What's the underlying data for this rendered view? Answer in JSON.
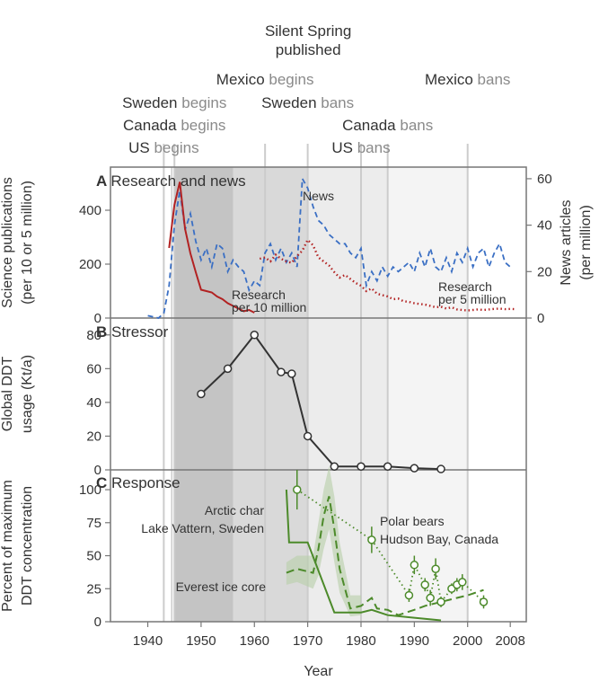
{
  "xaxis": {
    "label": "Year",
    "range": [
      1933,
      2011
    ],
    "ticks": [
      "1940",
      "1950",
      "1960",
      "1970",
      "1980",
      "1990",
      "2000",
      "2008"
    ]
  },
  "events": [
    {
      "year": 1943,
      "actor": "US",
      "verb": "begins"
    },
    {
      "year": 1945,
      "actor": "Canada",
      "verb": "begins"
    },
    {
      "year": 1945,
      "actor": "Sweden",
      "verb": "begins"
    },
    {
      "year": 1962,
      "actor": "Mexico",
      "verb": "begins"
    },
    {
      "year": 1962,
      "actor": "",
      "verb": "Silent Spring\npublished"
    },
    {
      "year": 1970,
      "actor": "Sweden",
      "verb": "bans"
    },
    {
      "year": 1980,
      "actor": "US",
      "verb": "bans"
    },
    {
      "year": 1985,
      "actor": "Canada",
      "verb": "bans"
    },
    {
      "year": 2000,
      "actor": "Mexico",
      "verb": "bans"
    }
  ],
  "panels": {
    "a": {
      "letter": "A",
      "title": "Research and news",
      "ylabel_left": [
        "Science publications",
        "(per 10 or 5 million)"
      ],
      "ylabel_right": [
        "News articles",
        "(per million)"
      ],
      "yticks_left": [
        "0",
        "200",
        "400"
      ],
      "yticks_right": [
        "0",
        "20",
        "40",
        "60"
      ]
    },
    "b": {
      "letter": "B",
      "title": "Stressor",
      "ylabel": [
        "Global DDT",
        "usage (Kt/a)"
      ],
      "yticks": [
        "0",
        "20",
        "40",
        "60",
        "80"
      ]
    },
    "c": {
      "letter": "C",
      "title": "Response",
      "ylabel": [
        "Percent of maximum",
        "DDT concentration"
      ],
      "yticks": [
        "0",
        "25",
        "50",
        "75",
        "100"
      ]
    }
  },
  "annotations": {
    "news": "News",
    "research10": [
      "Research",
      "per 10 million"
    ],
    "research5": [
      "Research",
      "per 5 million"
    ],
    "arctic": [
      "Arctic char",
      "Lake Vattern, Sweden"
    ],
    "everest": "Everest ice core",
    "polar": [
      "Polar bears",
      "Hudson Bay, Canada"
    ]
  },
  "colors": {
    "research": "#b22222",
    "news": "#3a6fc4",
    "ddt_usage": "#333333",
    "response": "#4c8a2a",
    "ci_fill": "#b8cfa8",
    "shade_dark": "#c4c4c4",
    "shade_mid": "#d9d9d9",
    "shade_light": "#ececec",
    "shade_lighter": "#f4f4f4",
    "event_line": "#cccccc",
    "frame": "#777777"
  },
  "chart_data": [
    {
      "type": "line",
      "panel": "A",
      "title": "Research and news",
      "x_range": [
        1933,
        2011
      ],
      "ylim_left": [
        0,
        560
      ],
      "ylim_right": [
        0,
        65
      ],
      "series": [
        {
          "name": "News",
          "axis": "right",
          "style": "dashed",
          "points": [
            [
              1940,
              1
            ],
            [
              1942,
              0
            ],
            [
              1943,
              2
            ],
            [
              1944,
              14
            ],
            [
              1945,
              40
            ],
            [
              1946,
              55
            ],
            [
              1947,
              38
            ],
            [
              1948,
              45
            ],
            [
              1949,
              33
            ],
            [
              1950,
              25
            ],
            [
              1951,
              30
            ],
            [
              1952,
              22
            ],
            [
              1953,
              32
            ],
            [
              1954,
              30
            ],
            [
              1955,
              20
            ],
            [
              1956,
              25
            ],
            [
              1957,
              22
            ],
            [
              1958,
              20
            ],
            [
              1959,
              12
            ],
            [
              1960,
              16
            ],
            [
              1961,
              14
            ],
            [
              1962,
              28
            ],
            [
              1963,
              32
            ],
            [
              1964,
              25
            ],
            [
              1965,
              30
            ],
            [
              1966,
              24
            ],
            [
              1967,
              28
            ],
            [
              1968,
              22
            ],
            [
              1969,
              60
            ],
            [
              1970,
              56
            ],
            [
              1971,
              48
            ],
            [
              1972,
              42
            ],
            [
              1973,
              40
            ],
            [
              1974,
              36
            ],
            [
              1975,
              34
            ],
            [
              1976,
              32
            ],
            [
              1977,
              32
            ],
            [
              1978,
              28
            ],
            [
              1979,
              26
            ],
            [
              1980,
              30
            ],
            [
              1981,
              14
            ],
            [
              1982,
              20
            ],
            [
              1983,
              16
            ],
            [
              1984,
              22
            ],
            [
              1985,
              18
            ],
            [
              1986,
              22
            ],
            [
              1987,
              20
            ],
            [
              1988,
              22
            ],
            [
              1989,
              24
            ],
            [
              1990,
              20
            ],
            [
              1991,
              28
            ],
            [
              1992,
              22
            ],
            [
              1993,
              30
            ],
            [
              1994,
              22
            ],
            [
              1995,
              20
            ],
            [
              1996,
              26
            ],
            [
              1997,
              20
            ],
            [
              1998,
              28
            ],
            [
              1999,
              24
            ],
            [
              2000,
              30
            ],
            [
              2001,
              22
            ],
            [
              2002,
              28
            ],
            [
              2003,
              30
            ],
            [
              2004,
              22
            ],
            [
              2005,
              28
            ],
            [
              2006,
              32
            ],
            [
              2007,
              24
            ],
            [
              2008,
              22
            ]
          ]
        },
        {
          "name": "Research per 10 million",
          "axis": "left",
          "style": "solid",
          "points": [
            [
              1944,
              260
            ],
            [
              1945,
              420
            ],
            [
              1946,
              505
            ],
            [
              1947,
              330
            ],
            [
              1948,
              240
            ],
            [
              1949,
              170
            ],
            [
              1950,
              105
            ],
            [
              1951,
              100
            ],
            [
              1952,
              95
            ],
            [
              1953,
              80
            ],
            [
              1954,
              70
            ],
            [
              1955,
              55
            ],
            [
              1956,
              45
            ],
            [
              1957,
              35
            ],
            [
              1958,
              25
            ],
            [
              1959,
              30
            ],
            [
              1960,
              20
            ]
          ]
        },
        {
          "name": "Research per 5 million",
          "axis": "left",
          "style": "dotted",
          "points": [
            [
              1961,
              220
            ],
            [
              1962,
              225
            ],
            [
              1963,
              210
            ],
            [
              1964,
              235
            ],
            [
              1965,
              220
            ],
            [
              1966,
              210
            ],
            [
              1967,
              205
            ],
            [
              1968,
              230
            ],
            [
              1969,
              250
            ],
            [
              1970,
              290
            ],
            [
              1971,
              270
            ],
            [
              1972,
              225
            ],
            [
              1973,
              210
            ],
            [
              1974,
              195
            ],
            [
              1975,
              170
            ],
            [
              1976,
              150
            ],
            [
              1977,
              160
            ],
            [
              1978,
              145
            ],
            [
              1979,
              130
            ],
            [
              1980,
              120
            ],
            [
              1981,
              100
            ],
            [
              1982,
              110
            ],
            [
              1983,
              90
            ],
            [
              1984,
              85
            ],
            [
              1985,
              80
            ],
            [
              1986,
              70
            ],
            [
              1987,
              72
            ],
            [
              1988,
              62
            ],
            [
              1989,
              60
            ],
            [
              1990,
              55
            ],
            [
              1991,
              52
            ],
            [
              1992,
              50
            ],
            [
              1993,
              45
            ],
            [
              1994,
              40
            ],
            [
              1995,
              42
            ],
            [
              1996,
              35
            ],
            [
              1997,
              40
            ],
            [
              1998,
              32
            ],
            [
              1999,
              30
            ],
            [
              2000,
              28
            ],
            [
              2001,
              30
            ],
            [
              2002,
              32
            ],
            [
              2003,
              30
            ],
            [
              2004,
              32
            ],
            [
              2005,
              34
            ],
            [
              2006,
              35
            ],
            [
              2007,
              33
            ],
            [
              2008,
              34
            ],
            [
              2009,
              33
            ]
          ]
        }
      ]
    },
    {
      "type": "line",
      "panel": "B",
      "title": "Stressor",
      "x_range": [
        1933,
        2011
      ],
      "ylim": [
        0,
        90
      ],
      "series": [
        {
          "points": [
            [
              1950,
              45
            ],
            [
              1955,
              60
            ],
            [
              1960,
              80
            ],
            [
              1965,
              58
            ],
            [
              1967,
              57
            ],
            [
              1970,
              20
            ],
            [
              1975,
              2
            ],
            [
              1980,
              2
            ],
            [
              1985,
              2
            ],
            [
              1990,
              1
            ],
            [
              1995,
              0.5
            ]
          ]
        }
      ]
    },
    {
      "type": "line",
      "panel": "C",
      "title": "Response",
      "x_range": [
        1933,
        2011
      ],
      "ylim": [
        0,
        115
      ],
      "series": [
        {
          "name": "Arctic char Lake Vattern, Sweden",
          "style": "solid",
          "points": [
            [
              1966,
              100
            ],
            [
              1966.5,
              60
            ],
            [
              1970,
              60
            ],
            [
              1975,
              7
            ],
            [
              1980,
              7
            ],
            [
              1982,
              9
            ],
            [
              1985,
              5
            ],
            [
              1990,
              3
            ],
            [
              1995,
              1
            ]
          ]
        },
        {
          "name": "Everest ice core",
          "style": "dashed",
          "points": [
            [
              1966,
              37
            ],
            [
              1968,
              40
            ],
            [
              1971,
              37
            ],
            [
              1972,
              55
            ],
            [
              1973,
              80
            ],
            [
              1974,
              95
            ],
            [
              1975,
              70
            ],
            [
              1976,
              40
            ],
            [
              1978,
              10
            ],
            [
              1980,
              12
            ],
            [
              1982,
              18
            ],
            [
              1983,
              10
            ],
            [
              1985,
              9
            ],
            [
              1987,
              5
            ],
            [
              1990,
              9
            ],
            [
              1992,
              12
            ],
            [
              1995,
              15
            ],
            [
              1998,
              18
            ],
            [
              2000,
              20
            ],
            [
              2003,
              24
            ]
          ],
          "ci_upper": [
            [
              1966,
              45
            ],
            [
              1968,
              50
            ],
            [
              1971,
              50
            ],
            [
              1972,
              75
            ],
            [
              1973,
              100
            ],
            [
              1974,
              118
            ],
            [
              1975,
              95
            ],
            [
              1976,
              60
            ],
            [
              1978,
              20
            ],
            [
              1980,
              20
            ]
          ],
          "ci_lower": [
            [
              1966,
              28
            ],
            [
              1968,
              30
            ],
            [
              1971,
              25
            ],
            [
              1972,
              35
            ],
            [
              1973,
              55
            ],
            [
              1974,
              70
            ],
            [
              1975,
              45
            ],
            [
              1976,
              22
            ],
            [
              1978,
              4
            ],
            [
              1980,
              5
            ]
          ]
        },
        {
          "name": "Polar bears Hudson Bay, Canada",
          "style": "dotted-markers",
          "points": [
            [
              1968,
              100
            ],
            [
              1982,
              62
            ],
            [
              1989,
              20
            ],
            [
              1990,
              43
            ],
            [
              1992,
              28
            ],
            [
              1993,
              18
            ],
            [
              1994,
              40
            ],
            [
              1995,
              15
            ],
            [
              1997,
              25
            ],
            [
              1998,
              28
            ],
            [
              1999,
              30
            ],
            [
              2003,
              15
            ]
          ],
          "err": [
            15,
            10,
            5,
            7,
            5,
            6,
            8,
            4,
            4,
            5,
            6,
            5
          ]
        }
      ]
    }
  ]
}
